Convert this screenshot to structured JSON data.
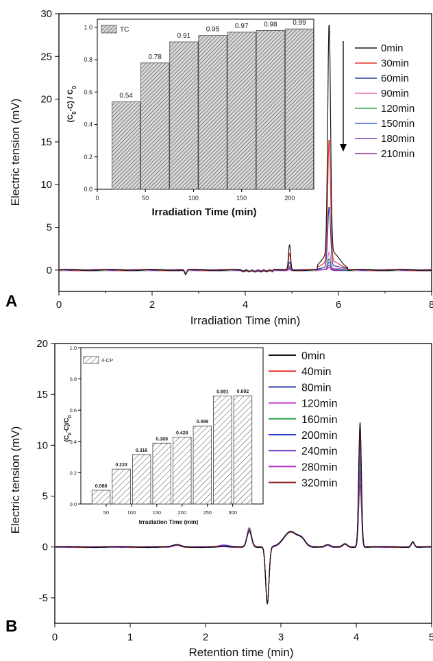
{
  "chart_data": [
    {
      "type": "line",
      "panel_label": "A",
      "xlabel": "Irradiation Time (min)",
      "ylabel": "Electric tension (mV)",
      "xlim": [
        0,
        8
      ],
      "ylim": [
        -2.5,
        30
      ],
      "xticks": [
        0,
        2,
        4,
        6,
        8
      ],
      "yticks": [
        0,
        5,
        10,
        15,
        20,
        25,
        30
      ],
      "legend_placement": "right",
      "peaks": [
        4.95,
        5.8
      ],
      "series": [
        {
          "name": "0min",
          "color": "#1a1a1a",
          "peak_heights": [
            3.0,
            27.0
          ]
        },
        {
          "name": "30min",
          "color": "#e8312c",
          "peak_heights": [
            2.0,
            14.4
          ]
        },
        {
          "name": "60min",
          "color": "#2e3fa8",
          "peak_heights": [
            1.0,
            7.0
          ]
        },
        {
          "name": "90min",
          "color": "#ea6fb8",
          "peak_heights": [
            0.5,
            2.0
          ]
        },
        {
          "name": "120min",
          "color": "#2ba14a",
          "peak_heights": [
            0.3,
            1.2
          ]
        },
        {
          "name": "150min",
          "color": "#3a66e0",
          "peak_heights": [
            0.25,
            0.8
          ]
        },
        {
          "name": "180min",
          "color": "#7a3cb0",
          "peak_heights": [
            0.2,
            0.5
          ]
        },
        {
          "name": "210min",
          "color": "#a0289a",
          "peak_heights": [
            0.1,
            0.3
          ]
        }
      ],
      "inset": {
        "type": "bar",
        "legend": "TC",
        "xlabel": "Irradiation Time (min)",
        "ylabel": "(C0-C) / C0",
        "xlim": [
          0,
          225
        ],
        "ylim": [
          0,
          1.05
        ],
        "xticks": [
          0,
          50,
          100,
          150,
          200
        ],
        "yticks": [
          "0.0",
          "0.2",
          "0.4",
          "0.6",
          "0.8",
          "1.0"
        ],
        "x": [
          30,
          60,
          90,
          120,
          150,
          180,
          210
        ],
        "values": [
          0.54,
          0.78,
          0.91,
          0.95,
          0.97,
          0.98,
          0.99
        ],
        "labels": [
          "0.54",
          "0.78",
          "0.91",
          "0.95",
          "0.97",
          "0.98",
          "0.99"
        ]
      }
    },
    {
      "type": "line",
      "panel_label": "B",
      "xlabel": "Retention time (min)",
      "ylabel": "Electric tension (mV)",
      "xlim": [
        0,
        5
      ],
      "ylim": [
        -7.5,
        20
      ],
      "xticks": [
        0,
        1,
        2,
        3,
        4,
        5
      ],
      "yticks": [
        -5,
        0,
        5,
        10,
        15,
        20
      ],
      "legend_placement": "right",
      "series": [
        {
          "name": "0min",
          "color": "#111111",
          "scale": 1.0
        },
        {
          "name": "40min",
          "color": "#e8312c",
          "scale": 0.93
        },
        {
          "name": "80min",
          "color": "#2e3fa8",
          "scale": 0.86
        },
        {
          "name": "120min",
          "color": "#c43ad1",
          "scale": 0.8
        },
        {
          "name": "160min",
          "color": "#2ba14a",
          "scale": 0.74
        },
        {
          "name": "200min",
          "color": "#2a3fd8",
          "scale": 0.68
        },
        {
          "name": "240min",
          "color": "#6a32b8",
          "scale": 0.62
        },
        {
          "name": "280min",
          "color": "#b030c0",
          "scale": 0.56
        },
        {
          "name": "320min",
          "color": "#8b1d1d",
          "scale": 0.5
        }
      ],
      "inset": {
        "type": "bar",
        "legend": "4-CP",
        "xlabel": "Irradiation Time (min)",
        "ylabel": "(C0-C)/C0",
        "xlim": [
          0,
          360
        ],
        "ylim": [
          0,
          1.0
        ],
        "xticks": [
          50,
          100,
          150,
          200,
          250,
          300
        ],
        "yticks": [
          "0.0",
          "0.2",
          "0.4",
          "0.6",
          "0.8",
          "1.0"
        ],
        "x": [
          40,
          80,
          120,
          160,
          200,
          240,
          280,
          320
        ],
        "values": [
          0.088,
          0.223,
          0.316,
          0.389,
          0.428,
          0.499,
          0.691,
          0.692
        ],
        "labels": [
          "0.088",
          "0.223",
          "0.316",
          "0.389",
          "0.428",
          "0.499",
          "0.691",
          "0.692"
        ]
      }
    }
  ]
}
